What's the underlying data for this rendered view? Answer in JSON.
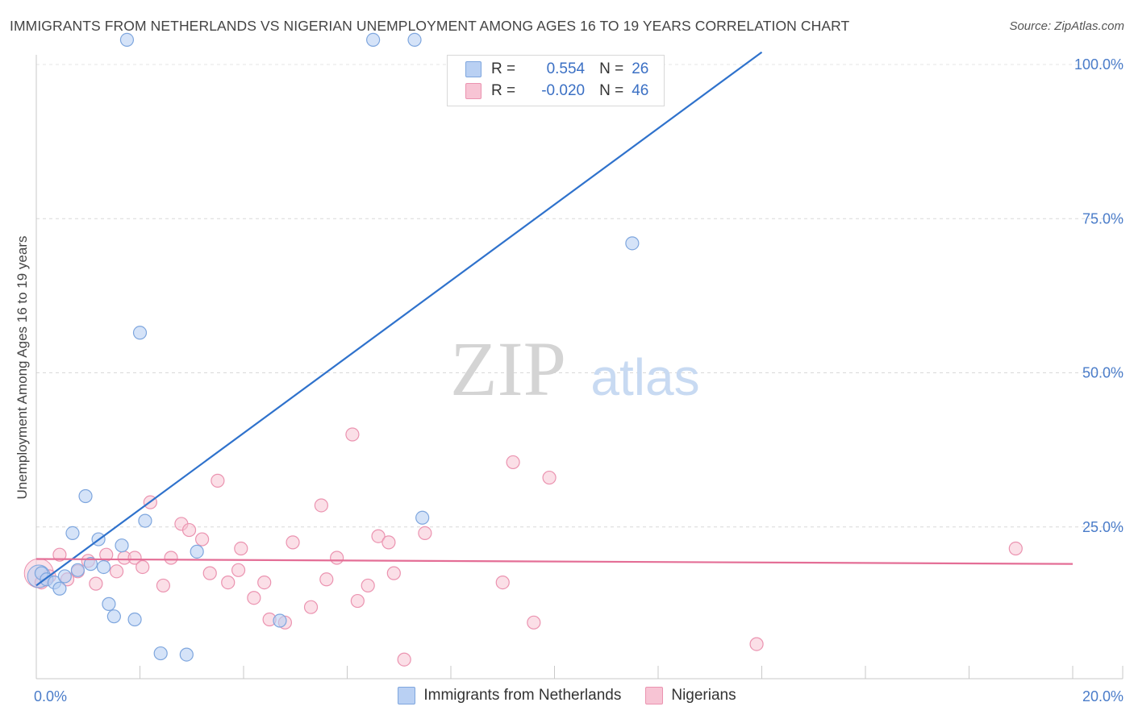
{
  "header": {
    "title": "IMMIGRANTS FROM NETHERLANDS VS NIGERIAN UNEMPLOYMENT AMONG AGES 16 TO 19 YEARS CORRELATION CHART",
    "source": "Source: ZipAtlas.com"
  },
  "watermark": {
    "zip": "ZIP",
    "atlas": "atlas"
  },
  "legend": {
    "series1": {
      "r_label": "R =",
      "r_value": "0.554",
      "n_label": "N =",
      "n_value": "26"
    },
    "series2": {
      "r_label": "R =",
      "r_value": "-0.020",
      "n_label": "N =",
      "n_value": "46"
    }
  },
  "colors": {
    "blue_fill": "#b9d0f3",
    "blue_stroke": "#7ea6de",
    "blue_line": "#2f72cc",
    "pink_fill": "#f7c4d4",
    "pink_stroke": "#eb93b0",
    "pink_line": "#e46e96",
    "axis_text": "#4a7cc9",
    "grid": "#d9d9d9"
  },
  "chart_data": {
    "type": "scatter",
    "title": "IMMIGRANTS FROM NETHERLANDS VS NIGERIAN UNEMPLOYMENT AMONG AGES 16 TO 19 YEARS CORRELATION CHART",
    "xlabel": "",
    "ylabel": "Unemployment Among Ages 16 to 19 years",
    "xlim": [
      0,
      20
    ],
    "ylim": [
      0,
      105
    ],
    "x_tick_labels": [
      {
        "value": 0,
        "label": "0.0%"
      },
      {
        "value": 20,
        "label": "20.0%"
      }
    ],
    "y_tick_labels": [
      {
        "value": 25,
        "label": "25.0%"
      },
      {
        "value": 50,
        "label": "50.0%"
      },
      {
        "value": 75,
        "label": "75.0%"
      },
      {
        "value": 100,
        "label": "100.0%"
      }
    ],
    "series": [
      {
        "name": "Immigrants from Netherlands",
        "color": "blue",
        "r": 0.554,
        "n": 26,
        "trend": [
          [
            0.0,
            15.5
          ],
          [
            14.0,
            102.0
          ]
        ],
        "points": [
          [
            0.1,
            17.5
          ],
          [
            0.2,
            16.5
          ],
          [
            0.35,
            16.0
          ],
          [
            0.45,
            15.0
          ],
          [
            0.55,
            17.0
          ],
          [
            0.7,
            24.0
          ],
          [
            0.8,
            18.0
          ],
          [
            0.95,
            30.0
          ],
          [
            1.05,
            19.0
          ],
          [
            1.2,
            23.0
          ],
          [
            1.3,
            18.5
          ],
          [
            1.4,
            12.5
          ],
          [
            1.5,
            10.5
          ],
          [
            1.65,
            22.0
          ],
          [
            1.75,
            104.0
          ],
          [
            1.9,
            10.0
          ],
          [
            2.0,
            56.5
          ],
          [
            2.1,
            26.0
          ],
          [
            2.4,
            4.5
          ],
          [
            2.9,
            4.3
          ],
          [
            3.1,
            21.0
          ],
          [
            4.7,
            9.8
          ],
          [
            6.5,
            104.0
          ],
          [
            7.3,
            104.0
          ],
          [
            7.45,
            26.5
          ],
          [
            11.5,
            71.0
          ]
        ]
      },
      {
        "name": "Nigerians",
        "color": "pink",
        "r": -0.02,
        "n": 46,
        "trend": [
          [
            0.0,
            19.8
          ],
          [
            20.0,
            19.0
          ]
        ],
        "points": [
          [
            0.1,
            16.0
          ],
          [
            0.25,
            17.0
          ],
          [
            0.45,
            20.5
          ],
          [
            0.6,
            16.5
          ],
          [
            0.8,
            17.8
          ],
          [
            1.0,
            19.5
          ],
          [
            1.15,
            15.8
          ],
          [
            1.35,
            20.5
          ],
          [
            1.55,
            17.8
          ],
          [
            1.7,
            20.0
          ],
          [
            1.9,
            20.0
          ],
          [
            2.05,
            18.5
          ],
          [
            2.2,
            29.0
          ],
          [
            2.45,
            15.5
          ],
          [
            2.6,
            20.0
          ],
          [
            2.8,
            25.5
          ],
          [
            2.95,
            24.5
          ],
          [
            3.2,
            23.0
          ],
          [
            3.35,
            17.5
          ],
          [
            3.5,
            32.5
          ],
          [
            3.7,
            16.0
          ],
          [
            3.9,
            18.0
          ],
          [
            3.95,
            21.5
          ],
          [
            4.2,
            13.5
          ],
          [
            4.4,
            16.0
          ],
          [
            4.5,
            10.0
          ],
          [
            4.8,
            9.5
          ],
          [
            4.95,
            22.5
          ],
          [
            5.3,
            12.0
          ],
          [
            5.5,
            28.5
          ],
          [
            5.6,
            16.5
          ],
          [
            5.8,
            20.0
          ],
          [
            6.1,
            40.0
          ],
          [
            6.2,
            13.0
          ],
          [
            6.4,
            15.5
          ],
          [
            6.6,
            23.5
          ],
          [
            6.8,
            22.5
          ],
          [
            6.9,
            17.5
          ],
          [
            7.1,
            3.5
          ],
          [
            7.5,
            24.0
          ],
          [
            9.0,
            16.0
          ],
          [
            9.2,
            35.5
          ],
          [
            9.6,
            9.5
          ],
          [
            9.9,
            33.0
          ],
          [
            13.9,
            6.0
          ],
          [
            18.9,
            21.5
          ]
        ]
      }
    ]
  },
  "bottom_legend": {
    "series1": "Immigrants from Netherlands",
    "series2": "Nigerians"
  }
}
